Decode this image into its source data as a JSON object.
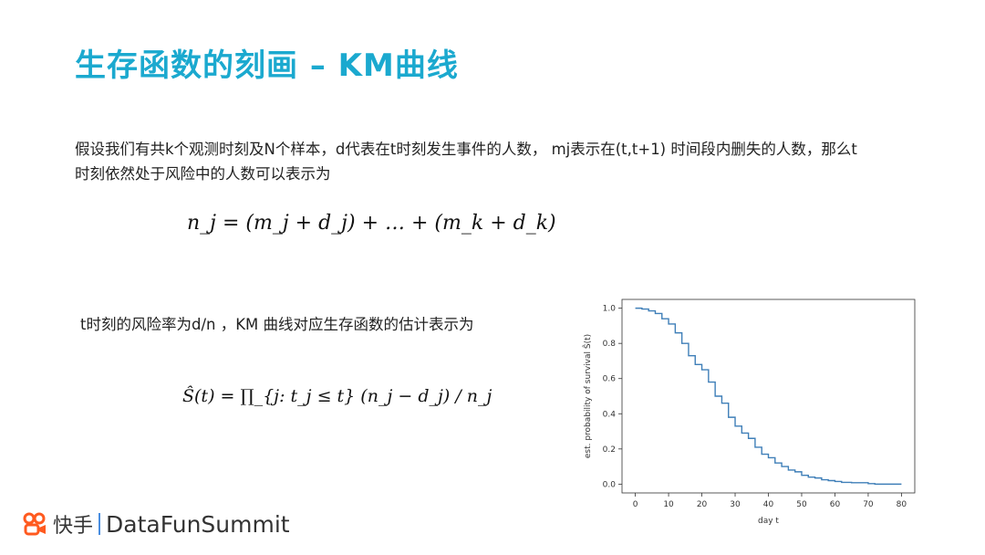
{
  "slide": {
    "title": "生存函数的刻画 – KM曲线",
    "paragraph": "假设我们有共k个观测时刻及N个样本，d代表在t时刻发生事件的人数， mj表示在(t,t+1) 时间段内删失的人数，那么t时刻依然处于风险中的人数可以表示为",
    "equation1": "n_j = (m_j + d_j) + … + (m_k + d_k)",
    "hazard_text": "t时刻的风险率为d/n ，KM 曲线对应生存函数的估计表示为",
    "equation2": "Ŝ(t) = ∏_{j: t_j ≤ t} (n_j − d_j) / n_j",
    "logo": {
      "brand": "快手",
      "event": "DataFunSummit",
      "brand_color": "#ff5a1f"
    }
  },
  "chart_data": {
    "type": "line",
    "step": true,
    "xlabel": "day t",
    "ylabel": "est. probability of survival Ŝ(t)",
    "xlim": [
      -4,
      84
    ],
    "ylim": [
      -0.05,
      1.05
    ],
    "xticks": [
      0,
      10,
      20,
      30,
      40,
      50,
      60,
      70,
      80
    ],
    "yticks": [
      "0.0",
      "0.2",
      "0.4",
      "0.6",
      "0.8",
      "1.0"
    ],
    "color": "#3f7fb8",
    "x": [
      0,
      2,
      4,
      6,
      8,
      10,
      12,
      14,
      16,
      18,
      20,
      22,
      24,
      26,
      28,
      30,
      32,
      34,
      36,
      38,
      40,
      42,
      44,
      46,
      48,
      50,
      52,
      54,
      56,
      58,
      60,
      62,
      65,
      70,
      72,
      80
    ],
    "y": [
      1.0,
      0.995,
      0.985,
      0.97,
      0.94,
      0.91,
      0.86,
      0.8,
      0.73,
      0.68,
      0.65,
      0.58,
      0.5,
      0.46,
      0.38,
      0.33,
      0.29,
      0.26,
      0.21,
      0.17,
      0.15,
      0.12,
      0.1,
      0.08,
      0.07,
      0.05,
      0.04,
      0.035,
      0.025,
      0.02,
      0.015,
      0.01,
      0.008,
      0.003,
      0.0,
      0.0
    ]
  }
}
